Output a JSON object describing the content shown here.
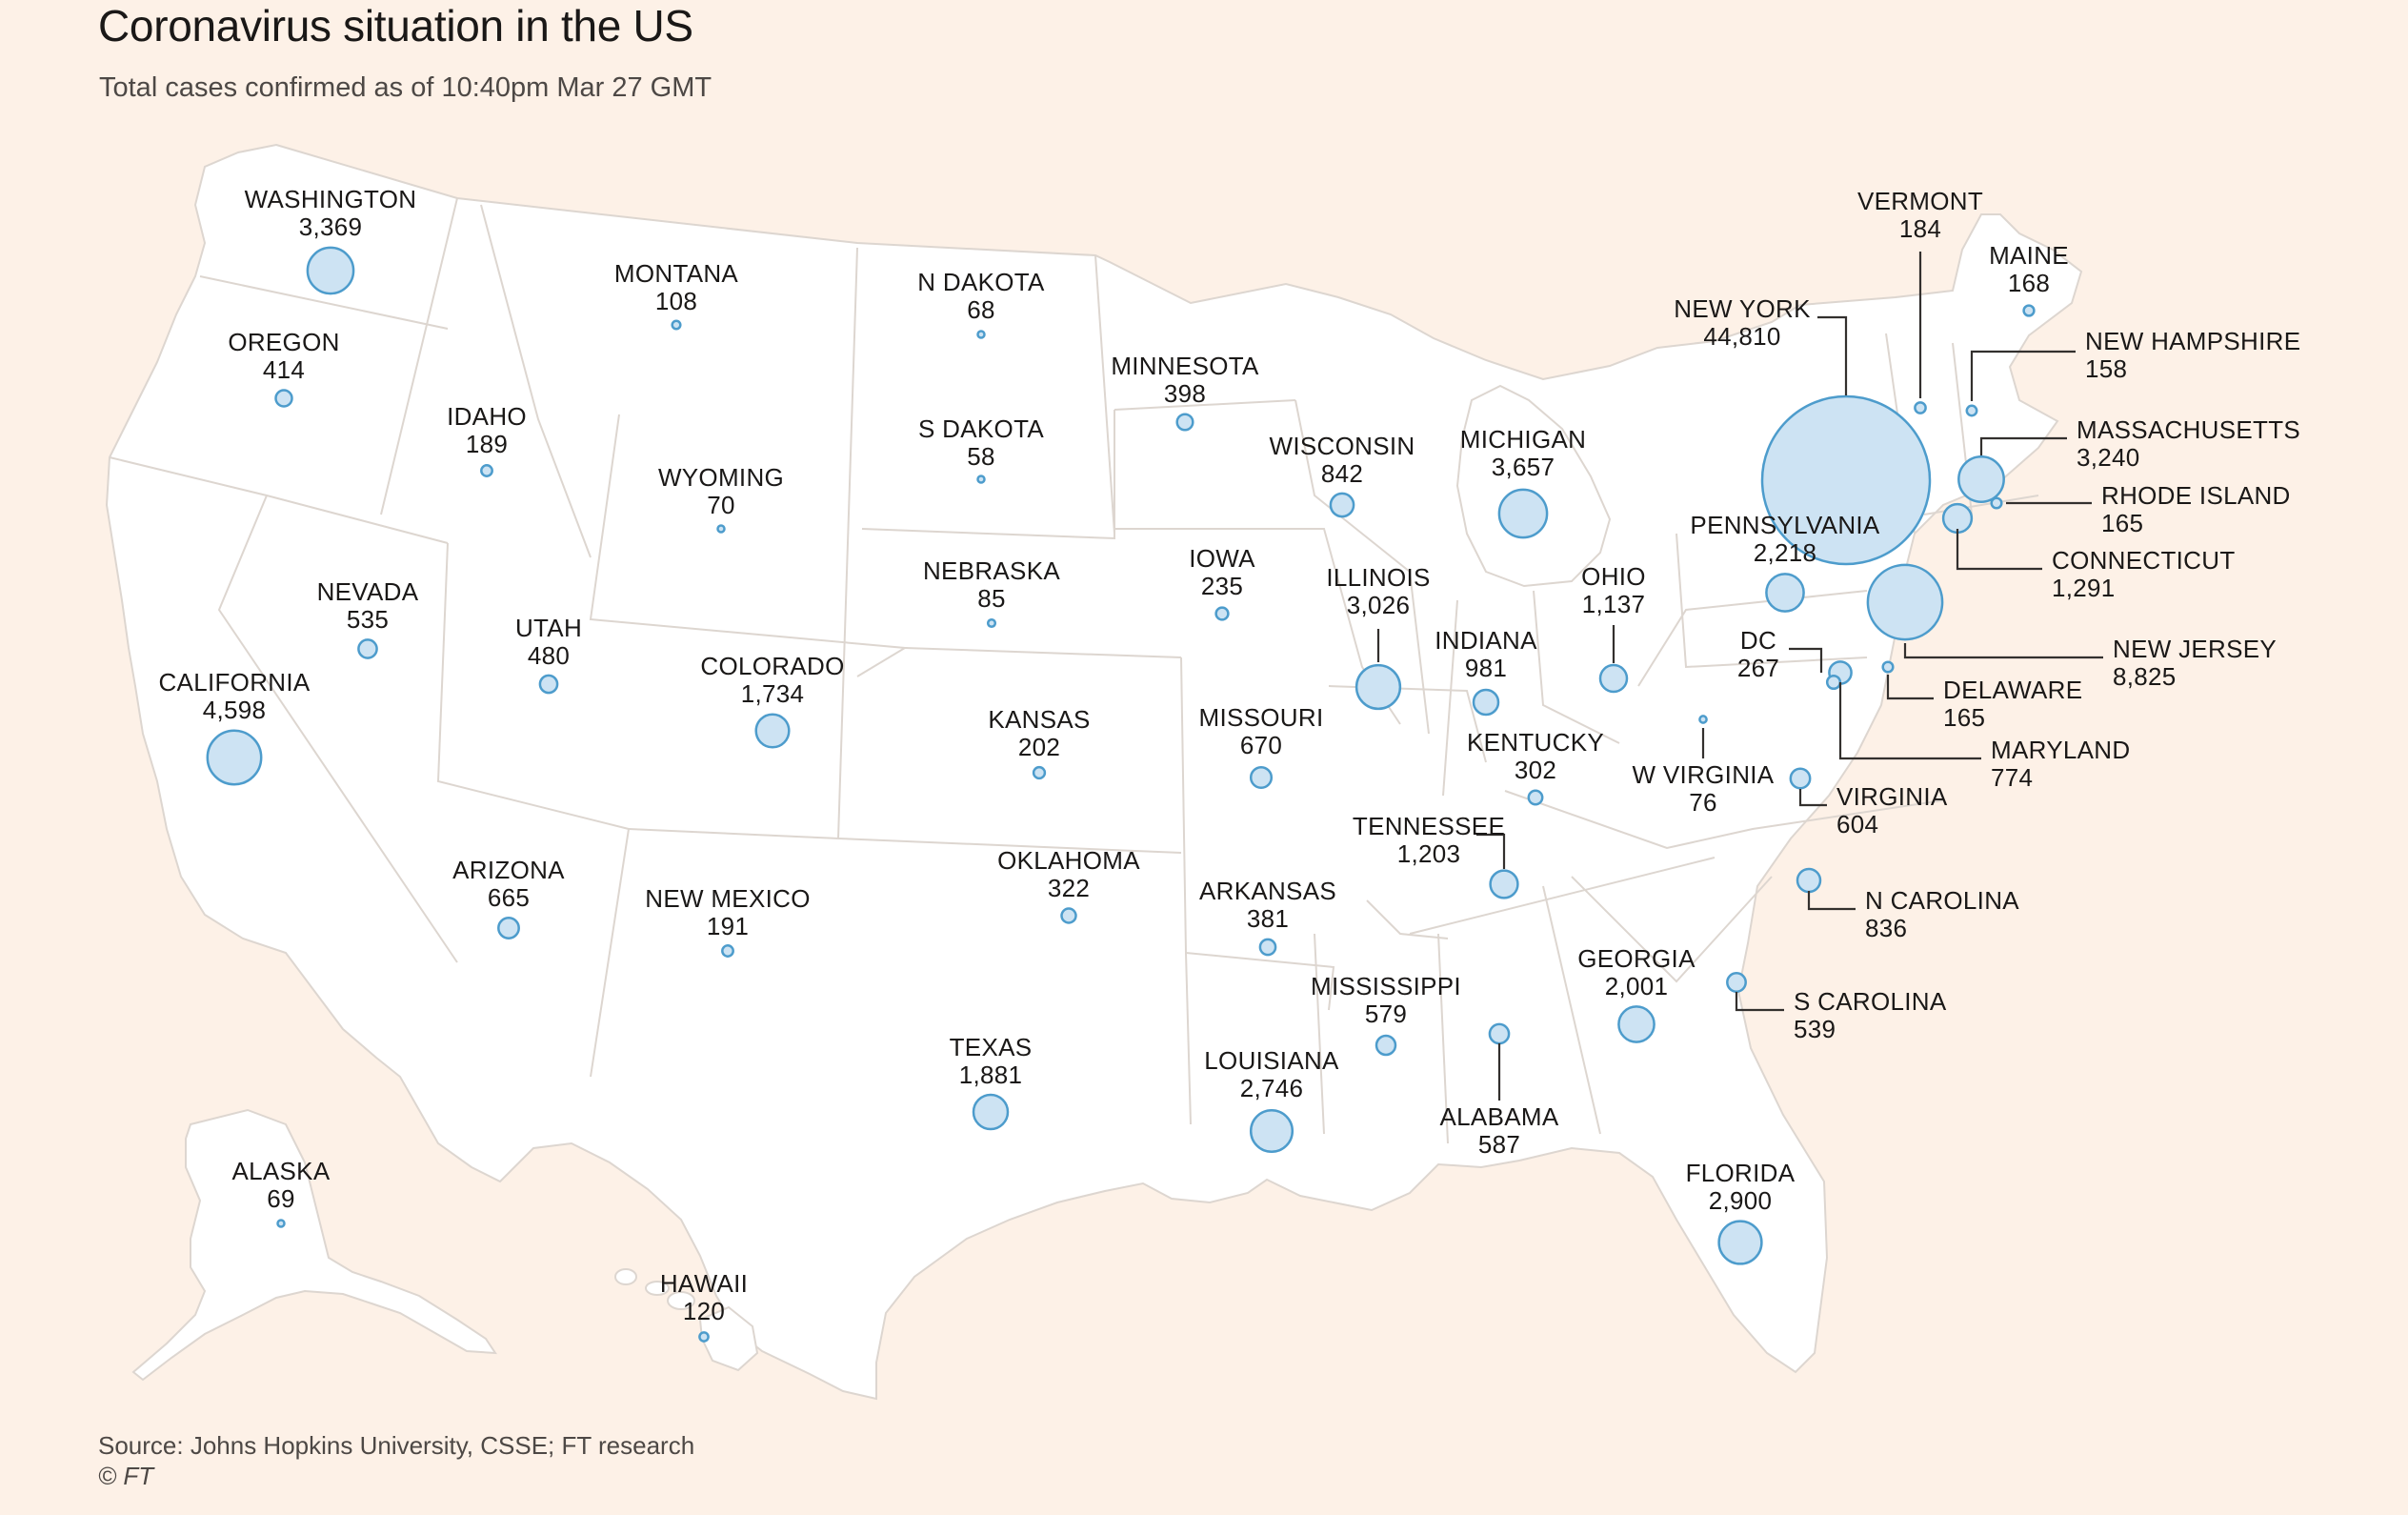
{
  "title": "Coronavirus situation in the US",
  "subtitle": "Total cases confirmed as of 10:40pm Mar 27 GMT",
  "source": "Source: Johns Hopkins University, CSSE; FT research",
  "copyright": "© FT",
  "colors": {
    "background": "#fdf1e7",
    "land": "#ffffff",
    "state_border": "#ddd6d0",
    "bubble_fill": "#cde3f3",
    "bubble_stroke": "#4d9ccc"
  },
  "states": [
    {
      "name": "WASHINGTON",
      "cases": "3,369",
      "value": 3369
    },
    {
      "name": "OREGON",
      "cases": "414",
      "value": 414
    },
    {
      "name": "CALIFORNIA",
      "cases": "4,598",
      "value": 4598
    },
    {
      "name": "NEVADA",
      "cases": "535",
      "value": 535
    },
    {
      "name": "IDAHO",
      "cases": "189",
      "value": 189
    },
    {
      "name": "MONTANA",
      "cases": "108",
      "value": 108
    },
    {
      "name": "WYOMING",
      "cases": "70",
      "value": 70
    },
    {
      "name": "UTAH",
      "cases": "480",
      "value": 480
    },
    {
      "name": "ARIZONA",
      "cases": "665",
      "value": 665
    },
    {
      "name": "COLORADO",
      "cases": "1,734",
      "value": 1734
    },
    {
      "name": "NEW MEXICO",
      "cases": "191",
      "value": 191
    },
    {
      "name": "N DAKOTA",
      "cases": "68",
      "value": 68
    },
    {
      "name": "S DAKOTA",
      "cases": "58",
      "value": 58
    },
    {
      "name": "NEBRASKA",
      "cases": "85",
      "value": 85
    },
    {
      "name": "KANSAS",
      "cases": "202",
      "value": 202
    },
    {
      "name": "OKLAHOMA",
      "cases": "322",
      "value": 322
    },
    {
      "name": "TEXAS",
      "cases": "1,881",
      "value": 1881
    },
    {
      "name": "MINNESOTA",
      "cases": "398",
      "value": 398
    },
    {
      "name": "IOWA",
      "cases": "235",
      "value": 235
    },
    {
      "name": "MISSOURI",
      "cases": "670",
      "value": 670
    },
    {
      "name": "ARKANSAS",
      "cases": "381",
      "value": 381
    },
    {
      "name": "LOUISIANA",
      "cases": "2,746",
      "value": 2746
    },
    {
      "name": "WISCONSIN",
      "cases": "842",
      "value": 842
    },
    {
      "name": "ILLINOIS",
      "cases": "3,026",
      "value": 3026
    },
    {
      "name": "MICHIGAN",
      "cases": "3,657",
      "value": 3657
    },
    {
      "name": "INDIANA",
      "cases": "981",
      "value": 981
    },
    {
      "name": "OHIO",
      "cases": "1,137",
      "value": 1137
    },
    {
      "name": "KENTUCKY",
      "cases": "302",
      "value": 302
    },
    {
      "name": "TENNESSEE",
      "cases": "1,203",
      "value": 1203
    },
    {
      "name": "MISSISSIPPI",
      "cases": "579",
      "value": 579
    },
    {
      "name": "ALABAMA",
      "cases": "587",
      "value": 587
    },
    {
      "name": "GEORGIA",
      "cases": "2,001",
      "value": 2001
    },
    {
      "name": "FLORIDA",
      "cases": "2,900",
      "value": 2900
    },
    {
      "name": "S CAROLINA",
      "cases": "539",
      "value": 539
    },
    {
      "name": "N CAROLINA",
      "cases": "836",
      "value": 836
    },
    {
      "name": "VIRGINIA",
      "cases": "604",
      "value": 604
    },
    {
      "name": "W VIRGINIA",
      "cases": "76",
      "value": 76
    },
    {
      "name": "MARYLAND",
      "cases": "774",
      "value": 774
    },
    {
      "name": "DC",
      "cases": "267",
      "value": 267
    },
    {
      "name": "DELAWARE",
      "cases": "165",
      "value": 165
    },
    {
      "name": "NEW JERSEY",
      "cases": "8,825",
      "value": 8825
    },
    {
      "name": "PENNSYLVANIA",
      "cases": "2,218",
      "value": 2218
    },
    {
      "name": "NEW YORK",
      "cases": "44,810",
      "value": 44810
    },
    {
      "name": "CONNECTICUT",
      "cases": "1,291",
      "value": 1291
    },
    {
      "name": "RHODE ISLAND",
      "cases": "165",
      "value": 165
    },
    {
      "name": "MASSACHUSETTS",
      "cases": "3,240",
      "value": 3240
    },
    {
      "name": "NEW HAMPSHIRE",
      "cases": "158",
      "value": 158
    },
    {
      "name": "VERMONT",
      "cases": "184",
      "value": 184
    },
    {
      "name": "MAINE",
      "cases": "168",
      "value": 168
    },
    {
      "name": "ALASKA",
      "cases": "69",
      "value": 69
    },
    {
      "name": "HAWAII",
      "cases": "120",
      "value": 120
    }
  ]
}
